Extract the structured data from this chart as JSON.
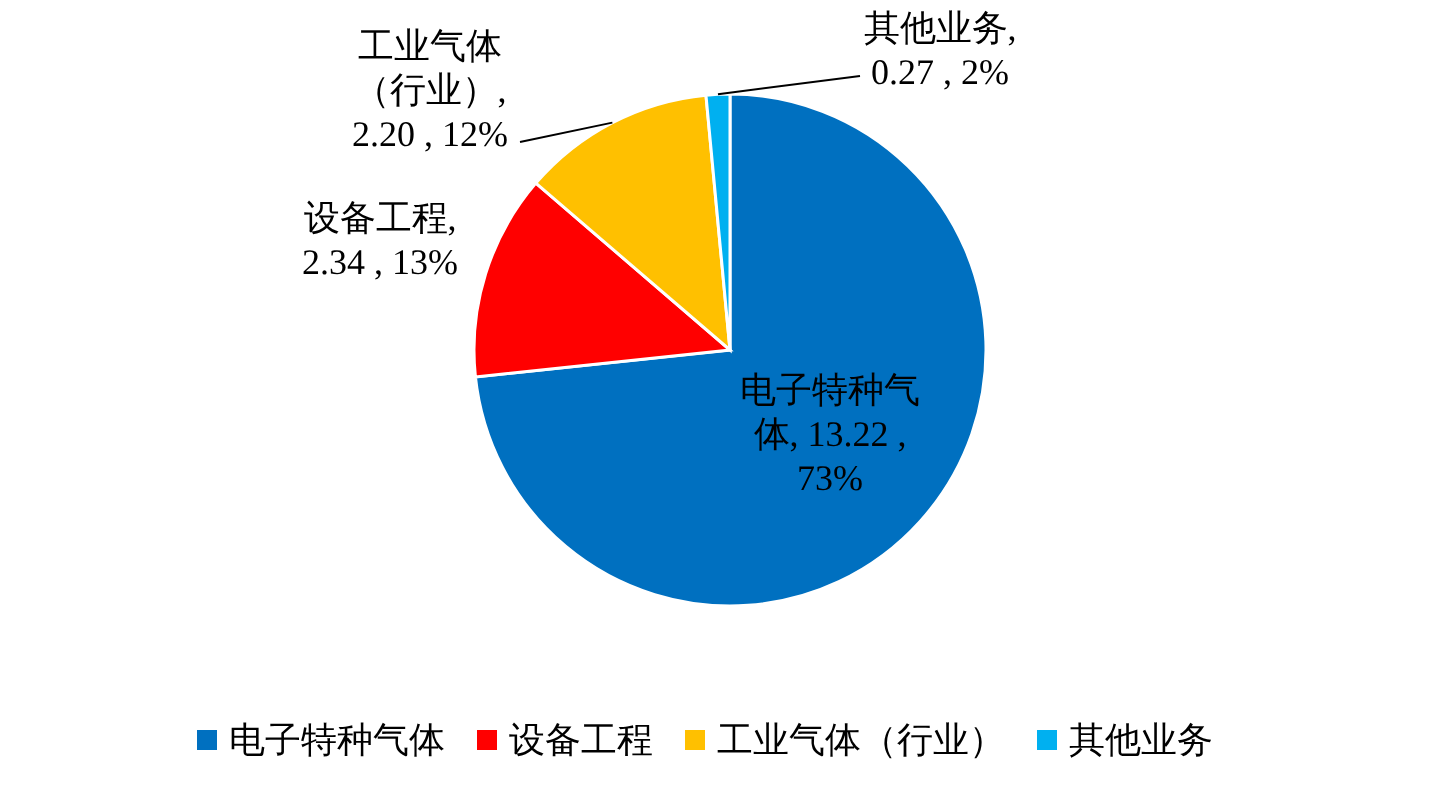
{
  "chart_data": {
    "type": "pie",
    "categories": [
      "电子特种气体",
      "设备工程",
      "工业气体（行业）",
      "其他业务"
    ],
    "values": [
      13.22,
      2.34,
      2.2,
      0.27
    ],
    "colors": [
      "#0070c0",
      "#ff0000",
      "#ffc000",
      "#00b0f0"
    ],
    "value_labels": [
      "电子特种气体, 13.22 , 73%",
      "设备工程, 2.34 , 13%",
      "工业气体（行业）, 2.20 , 12%",
      "其他业务, 0.27 , 2%"
    ],
    "legend": "bottom"
  }
}
